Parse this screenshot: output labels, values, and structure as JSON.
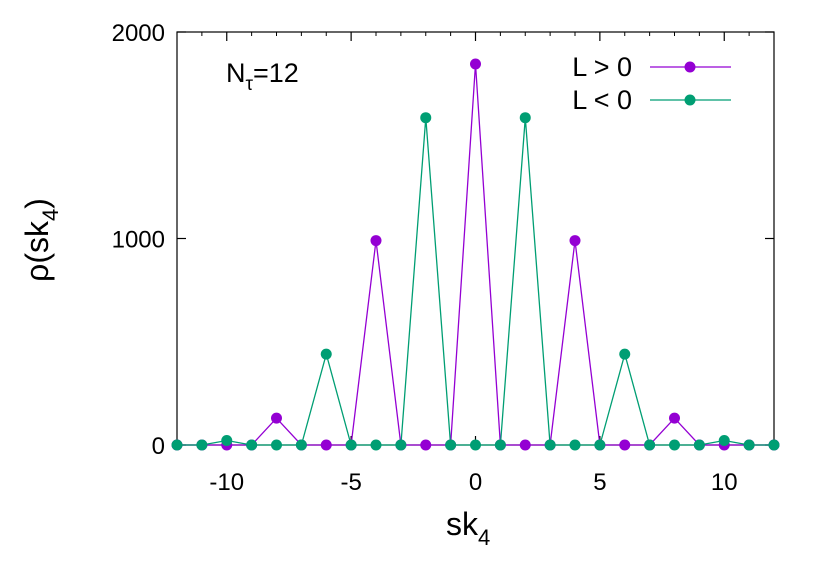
{
  "chart_data": {
    "type": "line",
    "annotation": {
      "base": "N",
      "sub": "τ",
      "suffix": "=12"
    },
    "xlabel": {
      "base": "sk",
      "sub": "4"
    },
    "ylabel": {
      "base": "ρ(sk",
      "sub": "4",
      "suffix": ")"
    },
    "xlim": [
      -12,
      12
    ],
    "ylim": [
      0,
      2000
    ],
    "xticks": [
      -10,
      -5,
      0,
      5,
      10
    ],
    "yticks": [
      0,
      1000,
      2000
    ],
    "grid": false,
    "legend_position": "top-right",
    "x": [
      -12,
      -11,
      -10,
      -9,
      -8,
      -7,
      -6,
      -5,
      -4,
      -3,
      -2,
      -1,
      0,
      1,
      2,
      3,
      4,
      5,
      6,
      7,
      8,
      9,
      10,
      11,
      12
    ],
    "series": [
      {
        "name": "L > 0",
        "color": "#9400d3",
        "values": [
          0,
          0,
          0,
          0,
          130,
          0,
          0,
          0,
          990,
          0,
          0,
          0,
          1845,
          0,
          0,
          0,
          990,
          0,
          0,
          0,
          130,
          0,
          0,
          0,
          0
        ]
      },
      {
        "name": "L < 0",
        "color": "#009e73",
        "values": [
          0,
          0,
          22,
          0,
          0,
          0,
          440,
          0,
          0,
          0,
          1585,
          0,
          0,
          0,
          1585,
          0,
          0,
          0,
          440,
          0,
          0,
          0,
          22,
          0,
          0
        ]
      }
    ]
  }
}
